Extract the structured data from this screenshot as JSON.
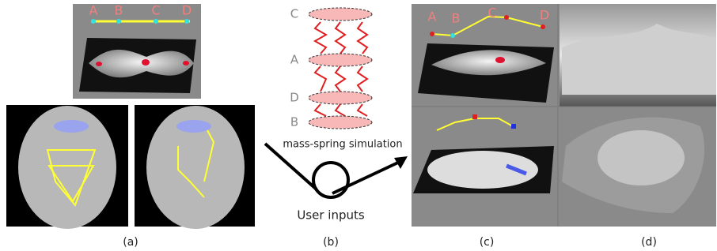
{
  "panel_a": {
    "graph_labels": [
      "A",
      "B",
      "C",
      "D"
    ],
    "caption": "(a)"
  },
  "panel_b": {
    "plate_labels": [
      "C",
      "A",
      "D",
      "B"
    ],
    "simulation_label": "mass-spring simulation",
    "input_label": "User inputs",
    "caption": "(b)"
  },
  "panel_c": {
    "graph_labels": [
      "A",
      "B",
      "C",
      "D"
    ],
    "caption": "(c)"
  },
  "panel_d": {
    "caption": "(d)"
  }
}
